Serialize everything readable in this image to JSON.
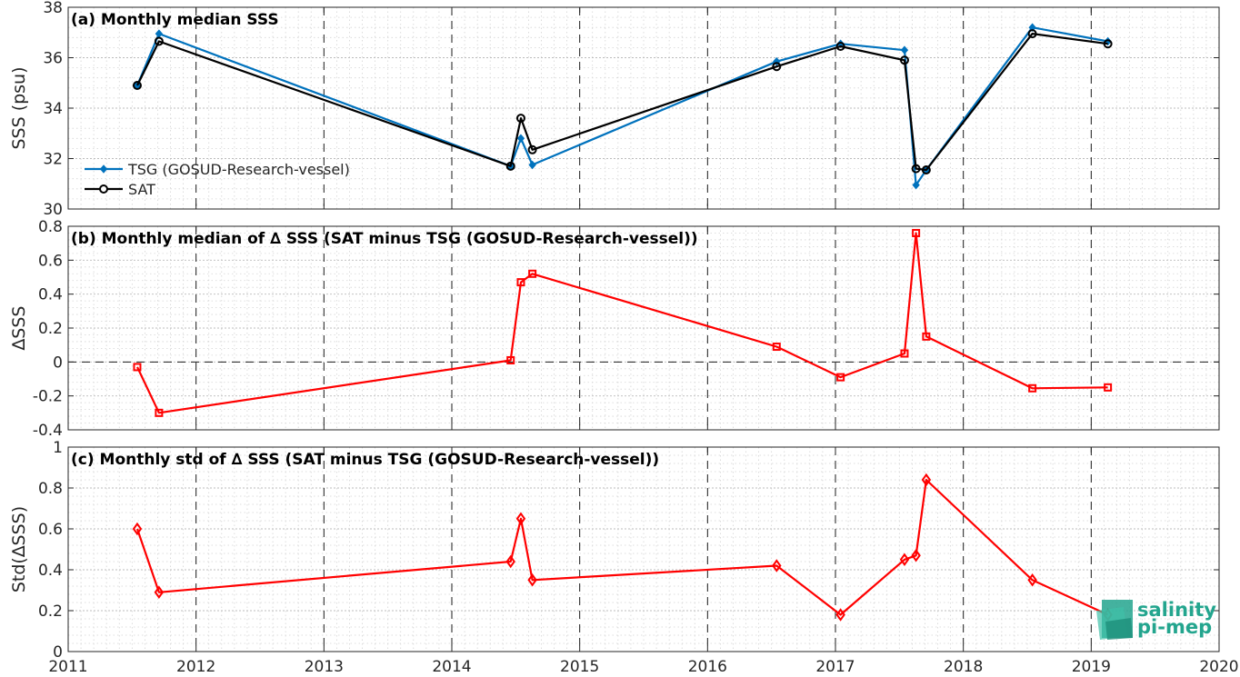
{
  "x_axis": {
    "min": 2011,
    "max": 2020,
    "ticks": [
      2011,
      2012,
      2013,
      2014,
      2015,
      2016,
      2017,
      2018,
      2019,
      2020
    ],
    "tick_labels": [
      "2011",
      "2012",
      "2013",
      "2014",
      "2015",
      "2016",
      "2017",
      "2018",
      "2019",
      "2020"
    ]
  },
  "logo": {
    "line1": "salinity",
    "line2": "pi-mep",
    "color": "#23a58e"
  },
  "chart_data": [
    {
      "id": "a",
      "type": "line",
      "title": "(a) Monthly median SSS",
      "xlabel": "",
      "ylabel": "SSS (psu)",
      "ylim": [
        30,
        38
      ],
      "yticks": [
        30,
        32,
        34,
        36,
        38
      ],
      "ytick_labels": [
        "30",
        "32",
        "34",
        "36",
        "38"
      ],
      "grid": true,
      "legend_placement": "bottom-left",
      "series": [
        {
          "name": "TSG (GOSUD-Research-vessel)",
          "color": "#0072bd",
          "marker": "filled-diamond",
          "x": [
            2011.54,
            2011.71,
            2014.46,
            2014.54,
            2014.63,
            2016.54,
            2017.04,
            2017.54,
            2017.63,
            2017.71,
            2018.54,
            2019.13
          ],
          "y": [
            34.9,
            36.95,
            31.7,
            32.8,
            31.75,
            35.85,
            36.55,
            36.3,
            30.95,
            31.55,
            37.2,
            36.65
          ]
        },
        {
          "name": "SAT",
          "color": "#000000",
          "marker": "open-circle",
          "x": [
            2011.54,
            2011.71,
            2014.46,
            2014.54,
            2014.63,
            2016.54,
            2017.04,
            2017.54,
            2017.63,
            2017.71,
            2018.54,
            2019.13
          ],
          "y": [
            34.9,
            36.65,
            31.7,
            33.6,
            32.35,
            35.65,
            36.45,
            35.9,
            31.6,
            31.55,
            36.95,
            36.55
          ]
        }
      ]
    },
    {
      "id": "b",
      "type": "line",
      "title": "(b) Monthly median of ∆ SSS (SAT minus TSG (GOSUD-Research-vessel))",
      "xlabel": "",
      "ylabel": "∆SSS",
      "ylim": [
        -0.4,
        0.8
      ],
      "yticks": [
        -0.4,
        -0.2,
        0,
        0.2,
        0.4,
        0.6,
        0.8
      ],
      "ytick_labels": [
        "-0.4",
        "-0.2",
        "0",
        "0.2",
        "0.4",
        "0.6",
        "0.8"
      ],
      "grid": true,
      "zero_line": true,
      "series": [
        {
          "color": "#ff0000",
          "marker": "open-square",
          "x": [
            2011.54,
            2011.71,
            2014.46,
            2014.54,
            2014.63,
            2016.54,
            2017.04,
            2017.54,
            2017.63,
            2017.71,
            2018.54,
            2019.13
          ],
          "y": [
            -0.03,
            -0.3,
            0.01,
            0.47,
            0.52,
            0.09,
            -0.09,
            0.05,
            0.76,
            0.15,
            -0.155,
            -0.15
          ]
        }
      ]
    },
    {
      "id": "c",
      "type": "line",
      "title": "(c) Monthly std of ∆ SSS (SAT minus TSG (GOSUD-Research-vessel))",
      "xlabel": "",
      "ylabel": "Std(∆SSS)",
      "ylim": [
        0,
        1
      ],
      "yticks": [
        0,
        0.2,
        0.4,
        0.6,
        0.8,
        1
      ],
      "ytick_labels": [
        "0",
        "0.2",
        "0.4",
        "0.6",
        "0.8",
        "1"
      ],
      "grid": true,
      "series": [
        {
          "color": "#ff0000",
          "marker": "open-diamond",
          "x": [
            2011.54,
            2011.71,
            2014.46,
            2014.54,
            2014.63,
            2016.54,
            2017.04,
            2017.54,
            2017.63,
            2017.71,
            2018.54,
            2019.13
          ],
          "y": [
            0.6,
            0.29,
            0.44,
            0.65,
            0.35,
            0.42,
            0.18,
            0.45,
            0.47,
            0.84,
            0.35,
            0.18
          ]
        }
      ]
    }
  ]
}
